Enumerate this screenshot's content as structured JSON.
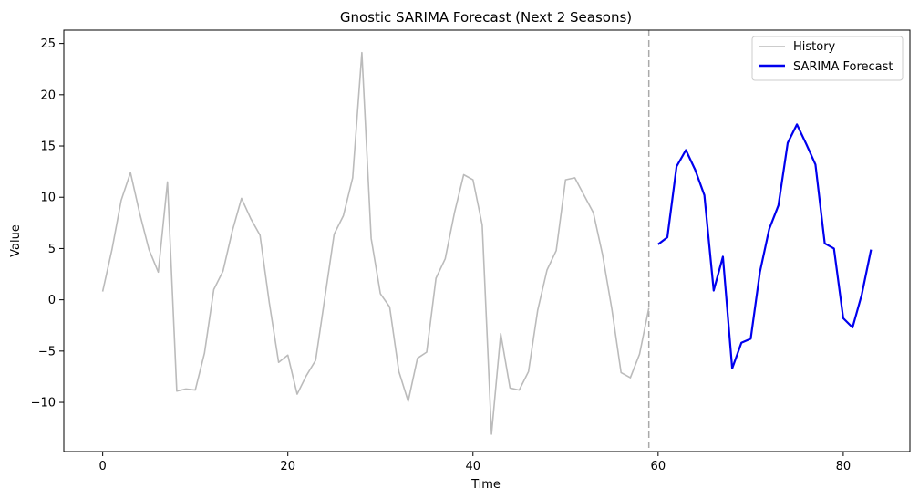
{
  "chart_data": {
    "type": "line",
    "title": "Gnostic SARIMA Forecast (Next 2 Seasons)",
    "xlabel": "Time",
    "ylabel": "Value",
    "xlim": [
      -4.2,
      87.2
    ],
    "ylim": [
      -14.8,
      26.3
    ],
    "xticks": [
      0,
      20,
      40,
      60,
      80
    ],
    "yticks": [
      -10,
      -5,
      0,
      5,
      10,
      15,
      20,
      25
    ],
    "grid": false,
    "legend_position": "top-right",
    "forecast_start_line": {
      "x": 59,
      "color": "#aaaaaa",
      "style": "dashed"
    },
    "series": [
      {
        "name": "History",
        "color": "#bbbbbb",
        "x_start": 0,
        "values": [
          0.8,
          4.9,
          9.7,
          12.4,
          8.4,
          4.9,
          2.7,
          11.5,
          -8.9,
          -8.7,
          -8.8,
          -5.2,
          1.0,
          2.8,
          6.7,
          9.9,
          7.9,
          6.3,
          -0.3,
          -6.1,
          -5.4,
          -9.2,
          -7.4,
          -5.9,
          0.2,
          6.4,
          8.2,
          11.9,
          24.1,
          6.0,
          0.6,
          -0.7,
          -7.0,
          -9.9,
          -5.7,
          -5.1,
          2.1,
          4.0,
          8.5,
          12.2,
          11.7,
          7.3,
          -13.1,
          -3.3,
          -8.6,
          -8.8,
          -7.0,
          -1.0,
          2.9,
          4.8,
          11.7,
          11.9,
          10.2,
          8.5,
          4.4,
          -0.9,
          -7.1,
          -7.6,
          -5.3,
          -0.8
        ]
      },
      {
        "name": "SARIMA Forecast",
        "color": "#0000ee",
        "x_start": 60,
        "values": [
          5.4,
          6.1,
          13.0,
          14.6,
          12.7,
          10.2,
          0.9,
          4.2,
          -6.7,
          -4.2,
          -3.8,
          2.7,
          6.9,
          9.2,
          15.3,
          17.1,
          15.2,
          13.2,
          5.5,
          5.0,
          -1.8,
          -2.7,
          0.5,
          4.9
        ]
      }
    ]
  }
}
